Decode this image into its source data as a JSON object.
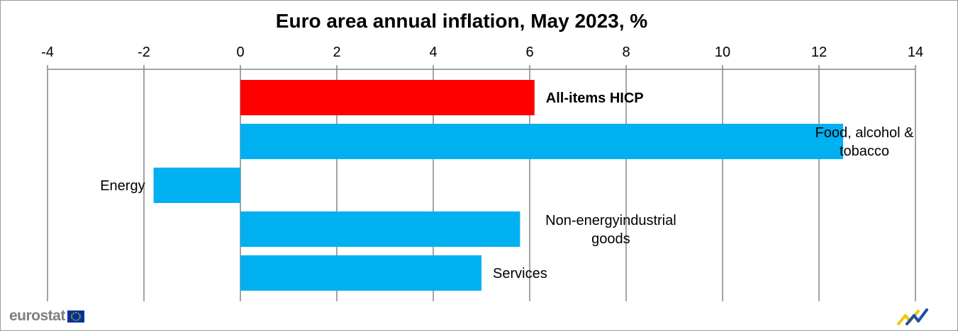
{
  "chart_data": {
    "type": "bar",
    "orientation": "horizontal",
    "title": "Euro area annual inflation, May 2023, %",
    "categories": [
      "All-items HICP",
      "Food, alcohol & tobacco",
      "Energy",
      "Non-energy industrial goods",
      "Services"
    ],
    "label_lines": [
      [
        "All-items HICP"
      ],
      [
        "Food, alcohol &",
        "tobacco"
      ],
      [
        "Energy"
      ],
      [
        "Non-energyindustrial",
        "goods"
      ],
      [
        "Services"
      ]
    ],
    "values": [
      6.1,
      12.5,
      -1.8,
      5.8,
      5.0
    ],
    "colors": [
      "#ff0000",
      "#00b0f0",
      "#00b0f0",
      "#00b0f0",
      "#00b0f0"
    ],
    "bold_categories": [
      "All-items HICP"
    ],
    "xlim": [
      -4,
      14
    ],
    "xticks": [
      -4,
      -2,
      0,
      2,
      4,
      6,
      8,
      10,
      12,
      14
    ],
    "axis_position": "top",
    "grid": true,
    "legend": "none"
  },
  "branding": {
    "logo_text": "eurostat",
    "flag_icon": "eu-flag-icon",
    "mark_icon": "eurostat-mark-icon"
  }
}
